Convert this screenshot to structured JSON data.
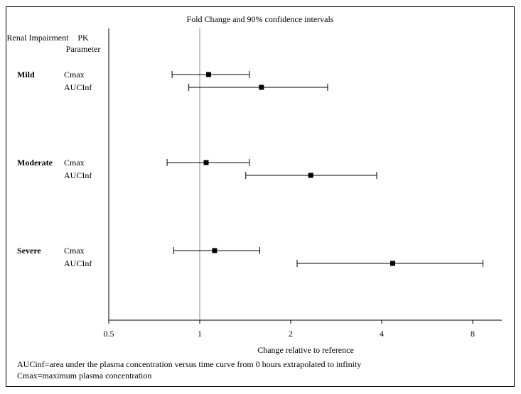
{
  "chart_data": {
    "type": "forest",
    "title": "Fold Change and 90% confidence intervals",
    "xlabel": "Change relative to reference",
    "x_scale": "log2",
    "xlim": [
      0.5,
      11.2
    ],
    "xticks": [
      0.5,
      1,
      2,
      4,
      8
    ],
    "xtick_labels": [
      "0.5",
      "1",
      "2",
      "4",
      "8"
    ],
    "reference_line": 1,
    "column_headers": {
      "group": "Renal Impairment",
      "parameter": "PK Parameter"
    },
    "groups": [
      {
        "name": "Mild",
        "rows": [
          {
            "parameter": "Cmax",
            "estimate": 1.07,
            "lower": 0.81,
            "upper": 1.46
          },
          {
            "parameter": "AUCInf",
            "estimate": 1.6,
            "lower": 0.92,
            "upper": 2.65
          }
        ]
      },
      {
        "name": "Moderate",
        "rows": [
          {
            "parameter": "Cmax",
            "estimate": 1.05,
            "lower": 0.78,
            "upper": 1.46
          },
          {
            "parameter": "AUCInf",
            "estimate": 2.33,
            "lower": 1.42,
            "upper": 3.85
          }
        ]
      },
      {
        "name": "Severe",
        "rows": [
          {
            "parameter": "Cmax",
            "estimate": 1.12,
            "lower": 0.82,
            "upper": 1.58
          },
          {
            "parameter": "AUCInf",
            "estimate": 4.35,
            "lower": 2.1,
            "upper": 8.65
          }
        ]
      }
    ],
    "grid": false
  },
  "footnotes": [
    "AUCinf=area under the plasma concentration versus time curve from 0 hours extrapolated to infinity",
    "Cmax=maximum plasma concentration"
  ]
}
